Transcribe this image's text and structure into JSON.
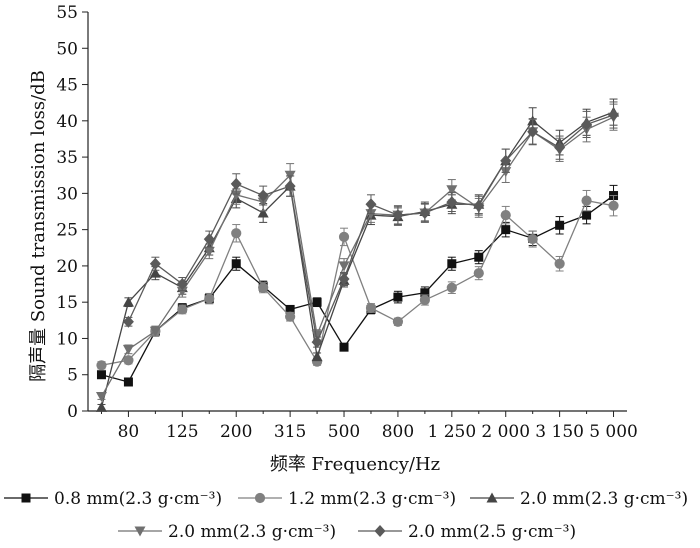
{
  "chart_data": {
    "type": "line",
    "xlabel": "频率 Frequency/Hz",
    "ylabel": "隔声量 Sound transmission loss/dB",
    "ylim": [
      0,
      55
    ],
    "yticks": [
      0,
      5,
      10,
      15,
      20,
      25,
      30,
      35,
      40,
      45,
      50,
      55
    ],
    "grid": false,
    "legend_position": "bottom",
    "x_positions": [
      1,
      2,
      3,
      4,
      5,
      6,
      7,
      8,
      9,
      10,
      11,
      12,
      13,
      14,
      15,
      16,
      17,
      18,
      19,
      20,
      21
    ],
    "x_tick_labels": [
      {
        "pos": 2,
        "label": "80"
      },
      {
        "pos": 4,
        "label": "125"
      },
      {
        "pos": 6,
        "label": "200"
      },
      {
        "pos": 8,
        "label": "315"
      },
      {
        "pos": 10,
        "label": "500"
      },
      {
        "pos": 12,
        "label": "800"
      },
      {
        "pos": 14,
        "label": "1 250"
      },
      {
        "pos": 16,
        "label": "2 000"
      },
      {
        "pos": 18,
        "label": "3 150"
      },
      {
        "pos": 20,
        "label": "5 000"
      }
    ],
    "series": [
      {
        "name": "0.8 mm(2.3 g·cm⁻³)",
        "marker": "square",
        "color": "#111111",
        "values": [
          5.0,
          4.0,
          11.0,
          14.2,
          15.5,
          20.3,
          17.2,
          14.0,
          15.0,
          8.8,
          14.0,
          15.7,
          16.3,
          20.3,
          21.2,
          25.0,
          23.8,
          25.6,
          27.0,
          29.7
        ],
        "errors": [
          0.5,
          0.4,
          0.5,
          0.6,
          0.7,
          0.9,
          0.7,
          0.5,
          0.6,
          0.5,
          0.6,
          0.8,
          0.8,
          0.9,
          0.9,
          1.0,
          1.0,
          1.2,
          1.2,
          1.4
        ]
      },
      {
        "name": "1.2 mm(2.3 g·cm⁻³)",
        "marker": "circle",
        "color": "#808080",
        "values": [
          6.3,
          7.0,
          11.0,
          14.0,
          15.5,
          24.5,
          17.0,
          13.0,
          6.8,
          24.0,
          14.2,
          12.3,
          15.3,
          17.0,
          19.0,
          27.0,
          23.7,
          20.3,
          29.0,
          28.3
        ],
        "errors": [
          0.5,
          0.5,
          0.6,
          0.6,
          0.7,
          1.2,
          0.7,
          0.6,
          0.5,
          1.2,
          0.6,
          0.5,
          0.7,
          0.8,
          0.9,
          1.2,
          1.1,
          1.0,
          1.4,
          1.4
        ]
      },
      {
        "name": "2.0 mm(2.3 g·cm⁻³)",
        "marker": "triangle-up",
        "color": "#454545",
        "values": [
          0.5,
          15.0,
          19.0,
          17.0,
          22.5,
          29.3,
          27.3,
          31.0,
          7.5,
          18.0,
          27.0,
          26.8,
          27.5,
          28.5,
          28.5,
          34.5,
          40.0,
          37.0,
          39.8,
          41.2
        ],
        "errors": [
          0.4,
          0.6,
          0.9,
          0.9,
          1.0,
          1.3,
          1.3,
          1.4,
          0.5,
          0.9,
          1.3,
          1.2,
          1.3,
          1.3,
          1.3,
          1.6,
          1.8,
          1.7,
          1.8,
          1.8
        ]
      },
      {
        "name": "2.0 mm(2.3 g·cm⁻³)",
        "marker": "triangle-down",
        "color": "#707070",
        "values": [
          2.0,
          8.5,
          11.0,
          16.5,
          22.0,
          29.8,
          28.8,
          32.5,
          10.5,
          20.0,
          27.2,
          27.0,
          27.3,
          30.5,
          28.0,
          33.0,
          38.5,
          36.0,
          38.8,
          40.5
        ],
        "errors": [
          0.4,
          0.6,
          0.7,
          0.8,
          1.0,
          1.3,
          1.2,
          1.6,
          0.7,
          1.0,
          1.2,
          1.2,
          1.2,
          1.4,
          1.3,
          1.5,
          1.7,
          1.6,
          1.7,
          1.8
        ]
      },
      {
        "name": "2.0 mm(2.5 g·cm⁻³)",
        "marker": "diamond",
        "color": "#5a5a5a",
        "values": [
          null,
          12.3,
          20.3,
          17.5,
          23.7,
          31.3,
          29.7,
          31.0,
          9.5,
          18.2,
          28.5,
          27.0,
          27.3,
          28.8,
          28.3,
          34.5,
          38.5,
          36.3,
          39.5,
          40.8
        ],
        "errors": [
          0,
          0.6,
          0.9,
          0.9,
          1.1,
          1.4,
          1.3,
          1.4,
          0.7,
          0.9,
          1.3,
          1.3,
          1.3,
          1.3,
          1.3,
          1.6,
          1.8,
          1.6,
          1.8,
          1.8
        ]
      }
    ]
  }
}
